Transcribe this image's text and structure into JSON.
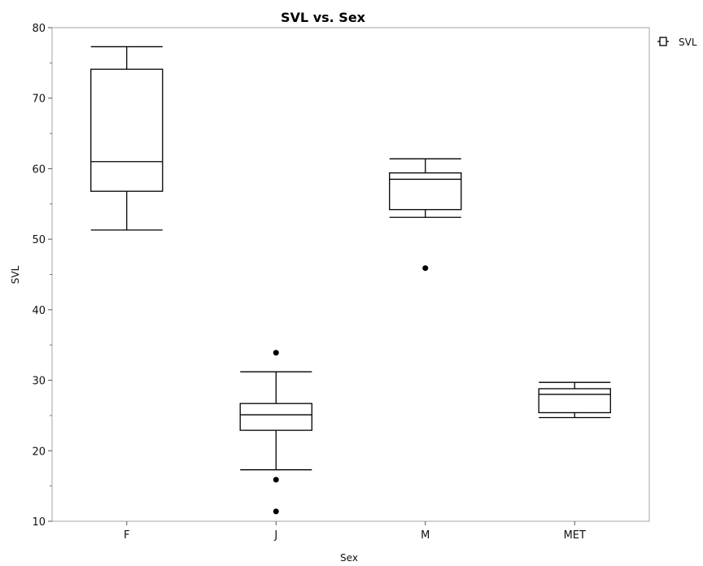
{
  "chart_data": {
    "type": "box",
    "title": "SVL vs. Sex",
    "xlabel": "Sex",
    "ylabel": "SVL",
    "ylim": [
      10,
      80
    ],
    "yticks": [
      10,
      20,
      30,
      40,
      50,
      60,
      70,
      80
    ],
    "categories": [
      "F",
      "J",
      "M",
      "MET"
    ],
    "series": [
      {
        "name": "SVL",
        "boxes": [
          {
            "category": "F",
            "whisker_low": 51.3,
            "q1": 56.8,
            "median": 61.0,
            "q3": 74.1,
            "whisker_high": 77.3,
            "outliers": []
          },
          {
            "category": "J",
            "whisker_low": 17.3,
            "q1": 22.9,
            "median": 25.1,
            "q3": 26.7,
            "whisker_high": 31.2,
            "outliers": [
              33.9,
              15.9,
              11.4
            ]
          },
          {
            "category": "M",
            "whisker_low": 53.1,
            "q1": 54.2,
            "median": 58.5,
            "q3": 59.4,
            "whisker_high": 61.4,
            "outliers": [
              45.9
            ]
          },
          {
            "category": "MET",
            "whisker_low": 24.7,
            "q1": 25.4,
            "median": 28.0,
            "q3": 28.8,
            "whisker_high": 29.7,
            "outliers": []
          }
        ]
      }
    ],
    "legend": {
      "position": "top-right",
      "entries": [
        "SVL"
      ]
    },
    "grid": false
  }
}
